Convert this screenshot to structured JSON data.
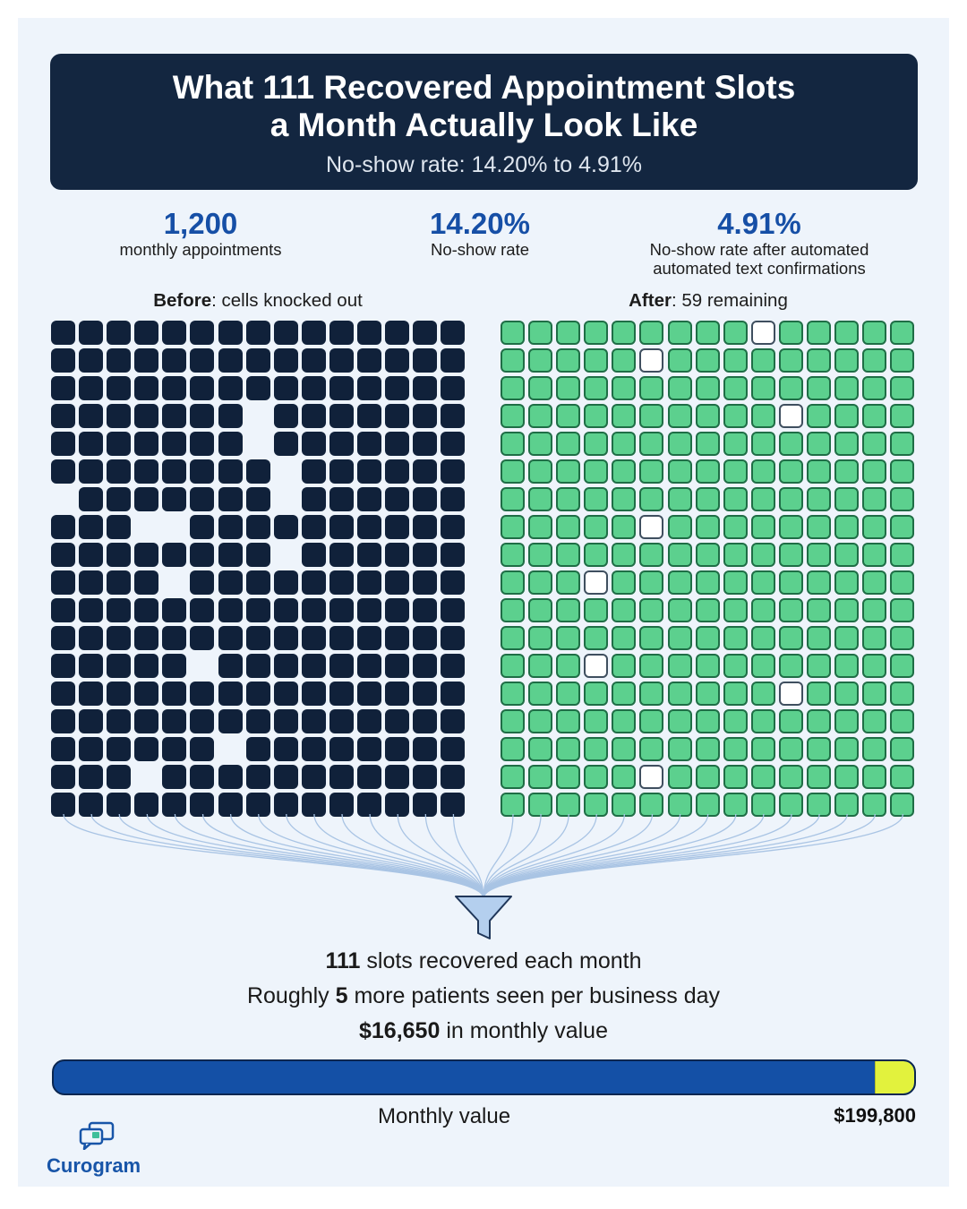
{
  "header": {
    "title_line1": "What 111 Recovered Appointment Slots",
    "title_line2": "a Month Actually Look Like",
    "subtitle": "No-show rate: 14.20% to 4.91%"
  },
  "stats": [
    {
      "value": "1,200",
      "label_line1": "monthly appointments",
      "label_line2": ""
    },
    {
      "value": "14.20%",
      "label_line1": "No-show rate",
      "label_line2": ""
    },
    {
      "value": "4.91%",
      "label_line1": "No-show rate after automated",
      "label_line2": "automated text confirmations"
    }
  ],
  "before_panel": {
    "label_bold": "Before",
    "label_rest": ": cells knocked out",
    "columns": 15,
    "rows": 18,
    "knocked_out": [
      [
        3,
        7
      ],
      [
        4,
        7
      ],
      [
        5,
        8
      ],
      [
        6,
        0
      ],
      [
        6,
        8
      ],
      [
        7,
        3
      ],
      [
        7,
        4
      ],
      [
        8,
        8
      ],
      [
        9,
        4
      ],
      [
        12,
        5
      ],
      [
        15,
        6
      ],
      [
        16,
        3
      ]
    ]
  },
  "after_panel": {
    "label_bold": "After",
    "label_rest": ": 59 remaining",
    "columns": 15,
    "rows": 18,
    "blank_cells": [
      [
        0,
        9
      ],
      [
        1,
        5
      ],
      [
        3,
        10
      ],
      [
        7,
        5
      ],
      [
        9,
        3
      ],
      [
        12,
        3
      ],
      [
        13,
        10
      ],
      [
        16,
        5
      ]
    ]
  },
  "summary": {
    "line1_bold": "111",
    "line1_rest": " slots recovered each month",
    "line2_pre": "Roughly ",
    "line2_bold": "5",
    "line2_rest": " more patients seen per business day",
    "line3_bold": "$16,650",
    "line3_rest": " in monthly value"
  },
  "value_bar": {
    "caption": "Monthly value",
    "total": "$199,800",
    "fill_fraction": 0.954,
    "colors": {
      "fill": "#1450a6",
      "marker": "#e2f23d"
    }
  },
  "logo": {
    "text": "Curogram",
    "icon": "chat-bubbles-icon"
  },
  "colors": {
    "navy": "#132640",
    "accent_blue": "#164fa6",
    "green": "#5cd08e"
  }
}
